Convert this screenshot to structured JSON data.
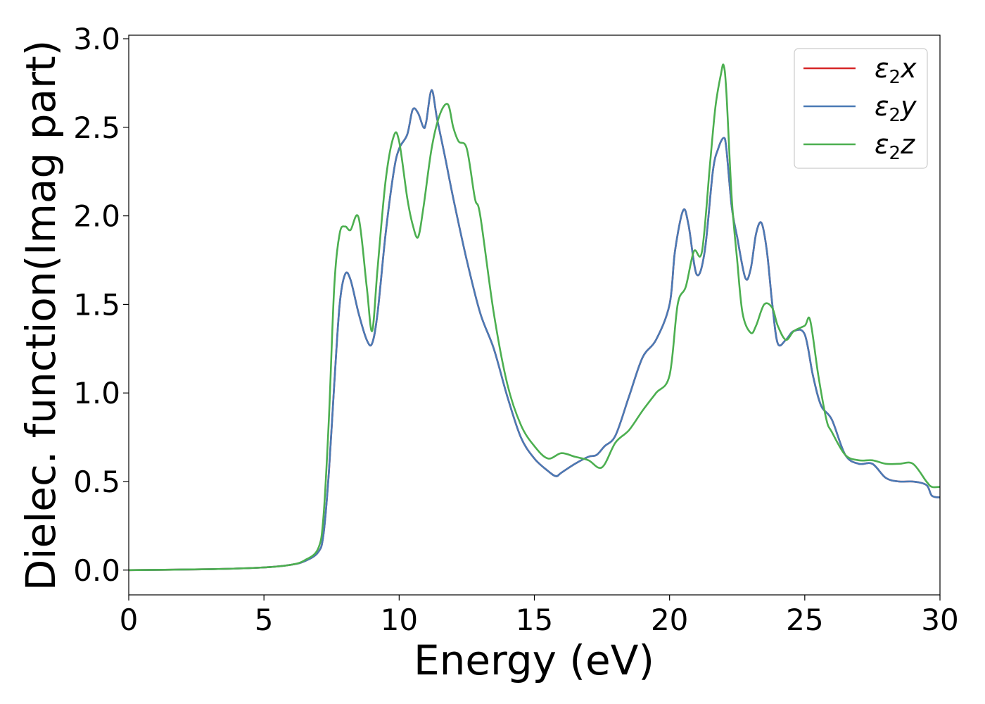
{
  "chart_data": {
    "type": "line",
    "title": "",
    "xlabel": "Energy (eV)",
    "ylabel": "Dielec. function(Imag part)",
    "xlim": [
      0,
      30
    ],
    "ylim": [
      -0.14,
      3.02
    ],
    "xticks": [
      0,
      5,
      10,
      15,
      20,
      25,
      30
    ],
    "xtick_labels": [
      "0",
      "5",
      "10",
      "15",
      "20",
      "25",
      "30"
    ],
    "yticks": [
      0.0,
      0.5,
      1.0,
      1.5,
      2.0,
      2.5,
      3.0
    ],
    "ytick_labels": [
      "0.0",
      "0.5",
      "1.0",
      "1.5",
      "2.0",
      "2.5",
      "3.0"
    ],
    "grid": false,
    "legend_position": "top-right",
    "series": [
      {
        "name": "ε2x",
        "legend_symbol": "ε",
        "legend_subscript": "2",
        "legend_suffix": "x",
        "color": "#d62728",
        "x": [
          0,
          3,
          5,
          6,
          6.5,
          7,
          7.2,
          7.4,
          7.6,
          7.8,
          8.0,
          8.2,
          8.5,
          8.8,
          9.0,
          9.2,
          9.5,
          9.8,
          10.0,
          10.3,
          10.5,
          10.7,
          10.9,
          11.0,
          11.2,
          11.4,
          11.7,
          12.0,
          12.5,
          13.0,
          13.5,
          14.0,
          14.5,
          15.0,
          15.5,
          15.8,
          16.0,
          16.5,
          17.0,
          17.3,
          17.6,
          18.0,
          18.5,
          19.0,
          19.5,
          20.0,
          20.2,
          20.5,
          20.7,
          21.0,
          21.3,
          21.6,
          21.8,
          22.0,
          22.1,
          22.3,
          22.5,
          22.8,
          23.0,
          23.2,
          23.4,
          23.6,
          23.8,
          24.0,
          24.3,
          24.6,
          25.0,
          25.3,
          25.6,
          26.0,
          26.5,
          27.0,
          27.5,
          28.0,
          28.5,
          29.0,
          29.5,
          29.7,
          30.0
        ],
        "y": [
          0.0,
          0.005,
          0.015,
          0.03,
          0.05,
          0.1,
          0.2,
          0.55,
          1.05,
          1.5,
          1.67,
          1.64,
          1.45,
          1.3,
          1.28,
          1.45,
          1.9,
          2.25,
          2.38,
          2.46,
          2.6,
          2.58,
          2.5,
          2.53,
          2.71,
          2.55,
          2.33,
          2.1,
          1.75,
          1.45,
          1.25,
          0.98,
          0.75,
          0.63,
          0.56,
          0.53,
          0.55,
          0.6,
          0.64,
          0.65,
          0.7,
          0.76,
          0.98,
          1.2,
          1.3,
          1.5,
          1.8,
          2.03,
          1.95,
          1.67,
          1.8,
          2.25,
          2.38,
          2.44,
          2.38,
          2.05,
          1.88,
          1.65,
          1.7,
          1.9,
          1.96,
          1.8,
          1.5,
          1.28,
          1.3,
          1.35,
          1.33,
          1.1,
          0.93,
          0.85,
          0.65,
          0.6,
          0.6,
          0.52,
          0.5,
          0.5,
          0.48,
          0.42,
          0.41
        ]
      },
      {
        "name": "ε2y",
        "legend_symbol": "ε",
        "legend_subscript": "2",
        "legend_suffix": "y",
        "color": "#4a7ab5",
        "x": [
          0,
          3,
          5,
          6,
          6.5,
          7,
          7.2,
          7.4,
          7.6,
          7.8,
          8.0,
          8.2,
          8.5,
          8.8,
          9.0,
          9.2,
          9.5,
          9.8,
          10.0,
          10.3,
          10.5,
          10.7,
          10.9,
          11.0,
          11.2,
          11.4,
          11.7,
          12.0,
          12.5,
          13.0,
          13.5,
          14.0,
          14.5,
          15.0,
          15.5,
          15.8,
          16.0,
          16.5,
          17.0,
          17.3,
          17.6,
          18.0,
          18.5,
          19.0,
          19.5,
          20.0,
          20.2,
          20.5,
          20.7,
          21.0,
          21.3,
          21.6,
          21.8,
          22.0,
          22.1,
          22.3,
          22.5,
          22.8,
          23.0,
          23.2,
          23.4,
          23.6,
          23.8,
          24.0,
          24.3,
          24.6,
          25.0,
          25.3,
          25.6,
          26.0,
          26.5,
          27.0,
          27.5,
          28.0,
          28.5,
          29.0,
          29.5,
          29.7,
          30.0
        ],
        "y": [
          0.0,
          0.005,
          0.015,
          0.03,
          0.05,
          0.1,
          0.2,
          0.55,
          1.05,
          1.5,
          1.67,
          1.64,
          1.45,
          1.3,
          1.28,
          1.45,
          1.9,
          2.25,
          2.38,
          2.46,
          2.6,
          2.58,
          2.5,
          2.53,
          2.71,
          2.55,
          2.33,
          2.1,
          1.75,
          1.45,
          1.25,
          0.98,
          0.75,
          0.63,
          0.56,
          0.53,
          0.55,
          0.6,
          0.64,
          0.65,
          0.7,
          0.76,
          0.98,
          1.2,
          1.3,
          1.5,
          1.8,
          2.03,
          1.95,
          1.67,
          1.8,
          2.25,
          2.38,
          2.44,
          2.38,
          2.05,
          1.88,
          1.65,
          1.7,
          1.9,
          1.96,
          1.8,
          1.5,
          1.28,
          1.3,
          1.35,
          1.33,
          1.1,
          0.93,
          0.85,
          0.65,
          0.6,
          0.6,
          0.52,
          0.5,
          0.5,
          0.48,
          0.42,
          0.41
        ]
      },
      {
        "name": "ε2z",
        "legend_symbol": "ε",
        "legend_subscript": "2",
        "legend_suffix": "z",
        "color": "#4caf50",
        "x": [
          0,
          3,
          5,
          6,
          6.5,
          7,
          7.2,
          7.4,
          7.6,
          7.8,
          8.0,
          8.2,
          8.5,
          8.8,
          9.0,
          9.2,
          9.5,
          9.8,
          10.0,
          10.3,
          10.5,
          10.7,
          10.9,
          11.2,
          11.5,
          11.8,
          12.0,
          12.2,
          12.5,
          12.8,
          13.0,
          13.5,
          14.0,
          14.5,
          15.0,
          15.5,
          16.0,
          16.5,
          17.0,
          17.5,
          18.0,
          18.5,
          19.0,
          19.5,
          20.0,
          20.3,
          20.6,
          20.9,
          21.2,
          21.5,
          21.7,
          21.9,
          22.0,
          22.1,
          22.3,
          22.5,
          22.7,
          23.0,
          23.2,
          23.5,
          23.8,
          24.0,
          24.3,
          24.6,
          25.0,
          25.2,
          25.5,
          25.8,
          26.0,
          26.5,
          27.0,
          27.5,
          28.0,
          28.5,
          29.0,
          29.5,
          29.7,
          30.0
        ],
        "y": [
          0.0,
          0.005,
          0.015,
          0.03,
          0.055,
          0.12,
          0.3,
          0.85,
          1.6,
          1.9,
          1.94,
          1.92,
          1.99,
          1.6,
          1.35,
          1.7,
          2.2,
          2.45,
          2.42,
          2.1,
          1.95,
          1.88,
          2.05,
          2.38,
          2.57,
          2.63,
          2.5,
          2.42,
          2.38,
          2.1,
          2.0,
          1.45,
          1.05,
          0.82,
          0.7,
          0.63,
          0.66,
          0.64,
          0.62,
          0.58,
          0.72,
          0.79,
          0.9,
          1.0,
          1.1,
          1.5,
          1.6,
          1.8,
          1.8,
          2.3,
          2.62,
          2.8,
          2.85,
          2.7,
          2.1,
          1.75,
          1.45,
          1.34,
          1.38,
          1.5,
          1.48,
          1.38,
          1.3,
          1.35,
          1.38,
          1.41,
          1.1,
          0.85,
          0.78,
          0.65,
          0.62,
          0.62,
          0.6,
          0.6,
          0.6,
          0.5,
          0.47,
          0.47
        ]
      }
    ]
  }
}
